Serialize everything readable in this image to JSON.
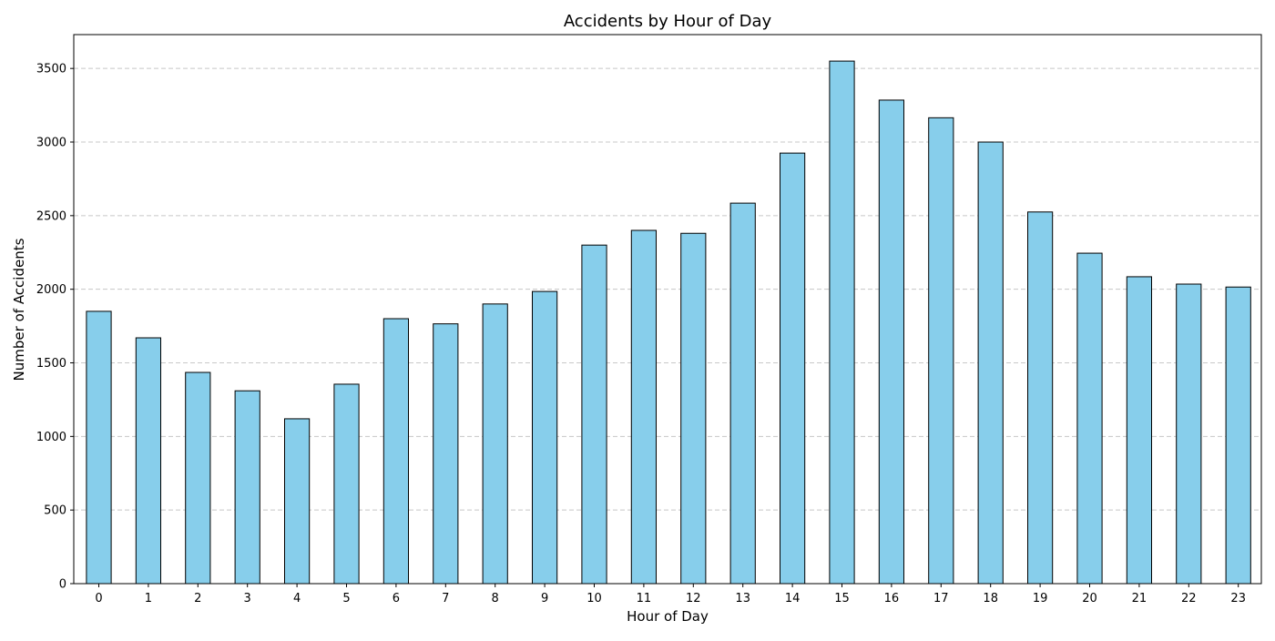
{
  "chart_data": {
    "type": "bar",
    "title": "Accidents by Hour of Day",
    "xlabel": "Hour of Day",
    "ylabel": "Number of Accidents",
    "categories": [
      "0",
      "1",
      "2",
      "3",
      "4",
      "5",
      "6",
      "7",
      "8",
      "9",
      "10",
      "11",
      "12",
      "13",
      "14",
      "15",
      "16",
      "17",
      "18",
      "19",
      "20",
      "21",
      "22",
      "23"
    ],
    "values": [
      1850,
      1670,
      1435,
      1310,
      1120,
      1355,
      1800,
      1765,
      1900,
      1985,
      2300,
      2400,
      2380,
      2585,
      2925,
      3550,
      3285,
      3165,
      3000,
      2525,
      2245,
      2085,
      2035,
      2015
    ],
    "ylim": [
      0,
      3730
    ],
    "yticks": [
      0,
      500,
      1000,
      1500,
      2000,
      2500,
      3000,
      3500
    ],
    "ytick_labels": [
      "0",
      "500",
      "1000",
      "1500",
      "2000",
      "2500",
      "3000",
      "3500"
    ],
    "grid": "horizontal dashed",
    "bar_color": "#87CEEB",
    "edge_color": "#000000",
    "grid_color": "#c8c8c8"
  }
}
